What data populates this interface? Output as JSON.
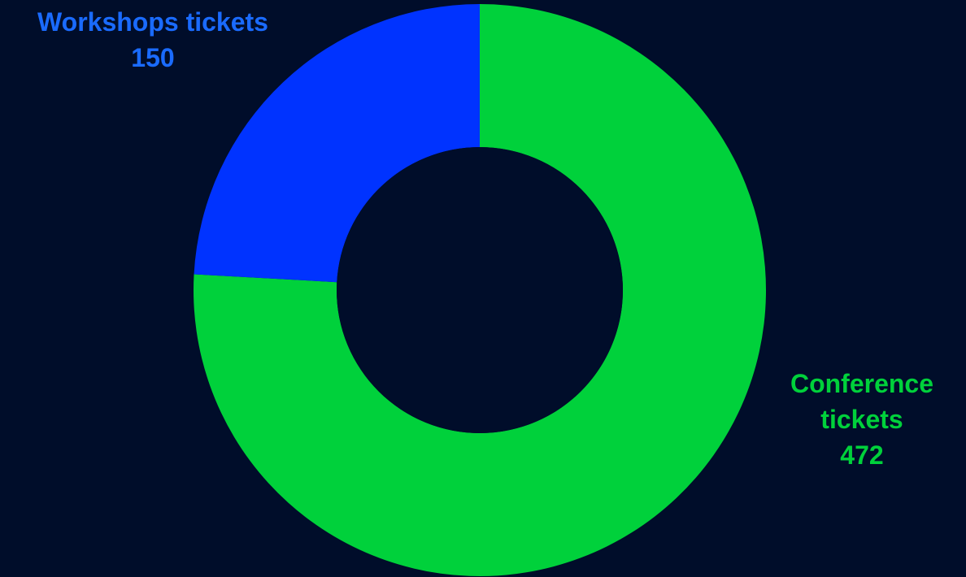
{
  "colors": {
    "background": "#000D2A",
    "hole": "#000D2A"
  },
  "chart_data": {
    "type": "pie",
    "donut": true,
    "title": "",
    "start_angle_deg": 0,
    "direction": "clockwise",
    "slices": [
      {
        "label": "Conference tickets",
        "value": 472,
        "color": "#00D13B"
      },
      {
        "label": "Workshops tickets",
        "value": 150,
        "color": "#0033FF"
      }
    ],
    "legend": "none",
    "data_labels": "outside"
  }
}
